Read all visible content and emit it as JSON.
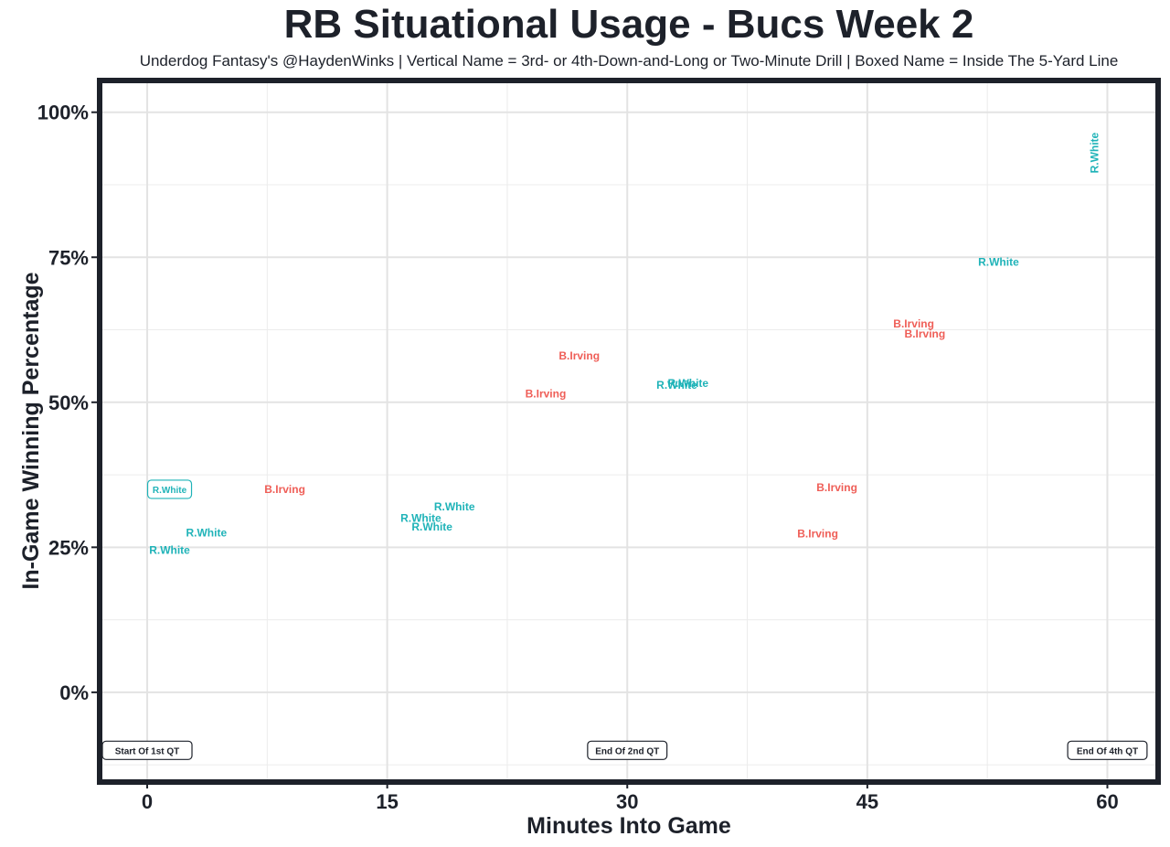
{
  "chart_data": {
    "type": "scatter",
    "title": "RB Situational Usage - Bucs Week 2",
    "subtitle": "Underdog Fantasy's @HaydenWinks | Vertical Name = 3rd- or 4th-Down-and-Long or Two-Minute Drill | Boxed Name = Inside The 5-Yard Line",
    "xlabel": "Minutes Into Game",
    "ylabel": "In-Game Winning Percentage",
    "xlim": [
      -2.8,
      63
    ],
    "ylim": [
      -15,
      105
    ],
    "x_ticks": [
      0,
      15,
      30,
      45,
      60
    ],
    "x_tick_labels": [
      "0",
      "15",
      "30",
      "45",
      "60"
    ],
    "y_ticks": [
      0,
      25,
      50,
      75,
      100
    ],
    "y_tick_labels": [
      "0%",
      "25%",
      "50%",
      "75%",
      "100%"
    ],
    "grid": true,
    "series": [
      {
        "name": "R.White",
        "color": "#1fb3b8"
      },
      {
        "name": "B.Irving",
        "color": "#ef5e57"
      }
    ],
    "points": [
      {
        "label": "R.White",
        "x": 1.4,
        "y": 35,
        "style": "boxed"
      },
      {
        "label": "R.White",
        "x": 1.4,
        "y": 24.5
      },
      {
        "label": "R.White",
        "x": 3.7,
        "y": 27.5
      },
      {
        "label": "B.Irving",
        "x": 8.6,
        "y": 35
      },
      {
        "label": "R.White",
        "x": 17.1,
        "y": 30
      },
      {
        "label": "R.White",
        "x": 17.8,
        "y": 28.5
      },
      {
        "label": "R.White",
        "x": 19.2,
        "y": 32
      },
      {
        "label": "B.Irving",
        "x": 24.9,
        "y": 51.5
      },
      {
        "label": "B.Irving",
        "x": 27.0,
        "y": 58
      },
      {
        "label": "R.White",
        "x": 33.1,
        "y": 53
      },
      {
        "label": "R.White",
        "x": 33.8,
        "y": 53.3
      },
      {
        "label": "B.Irving",
        "x": 41.9,
        "y": 27.3
      },
      {
        "label": "B.Irving",
        "x": 43.1,
        "y": 35.3
      },
      {
        "label": "B.Irving",
        "x": 47.9,
        "y": 63.5
      },
      {
        "label": "B.Irving",
        "x": 48.6,
        "y": 61.8
      },
      {
        "label": "R.White",
        "x": 53.2,
        "y": 74.2
      },
      {
        "label": "R.White",
        "x": 59.2,
        "y": 93,
        "style": "vertical"
      }
    ],
    "annotations": [
      {
        "text": "Start Of 1st QT",
        "x": 0,
        "y": -10
      },
      {
        "text": "End Of 2nd QT",
        "x": 30,
        "y": -10
      },
      {
        "text": "End Of 4th QT",
        "x": 60,
        "y": -10
      }
    ]
  }
}
